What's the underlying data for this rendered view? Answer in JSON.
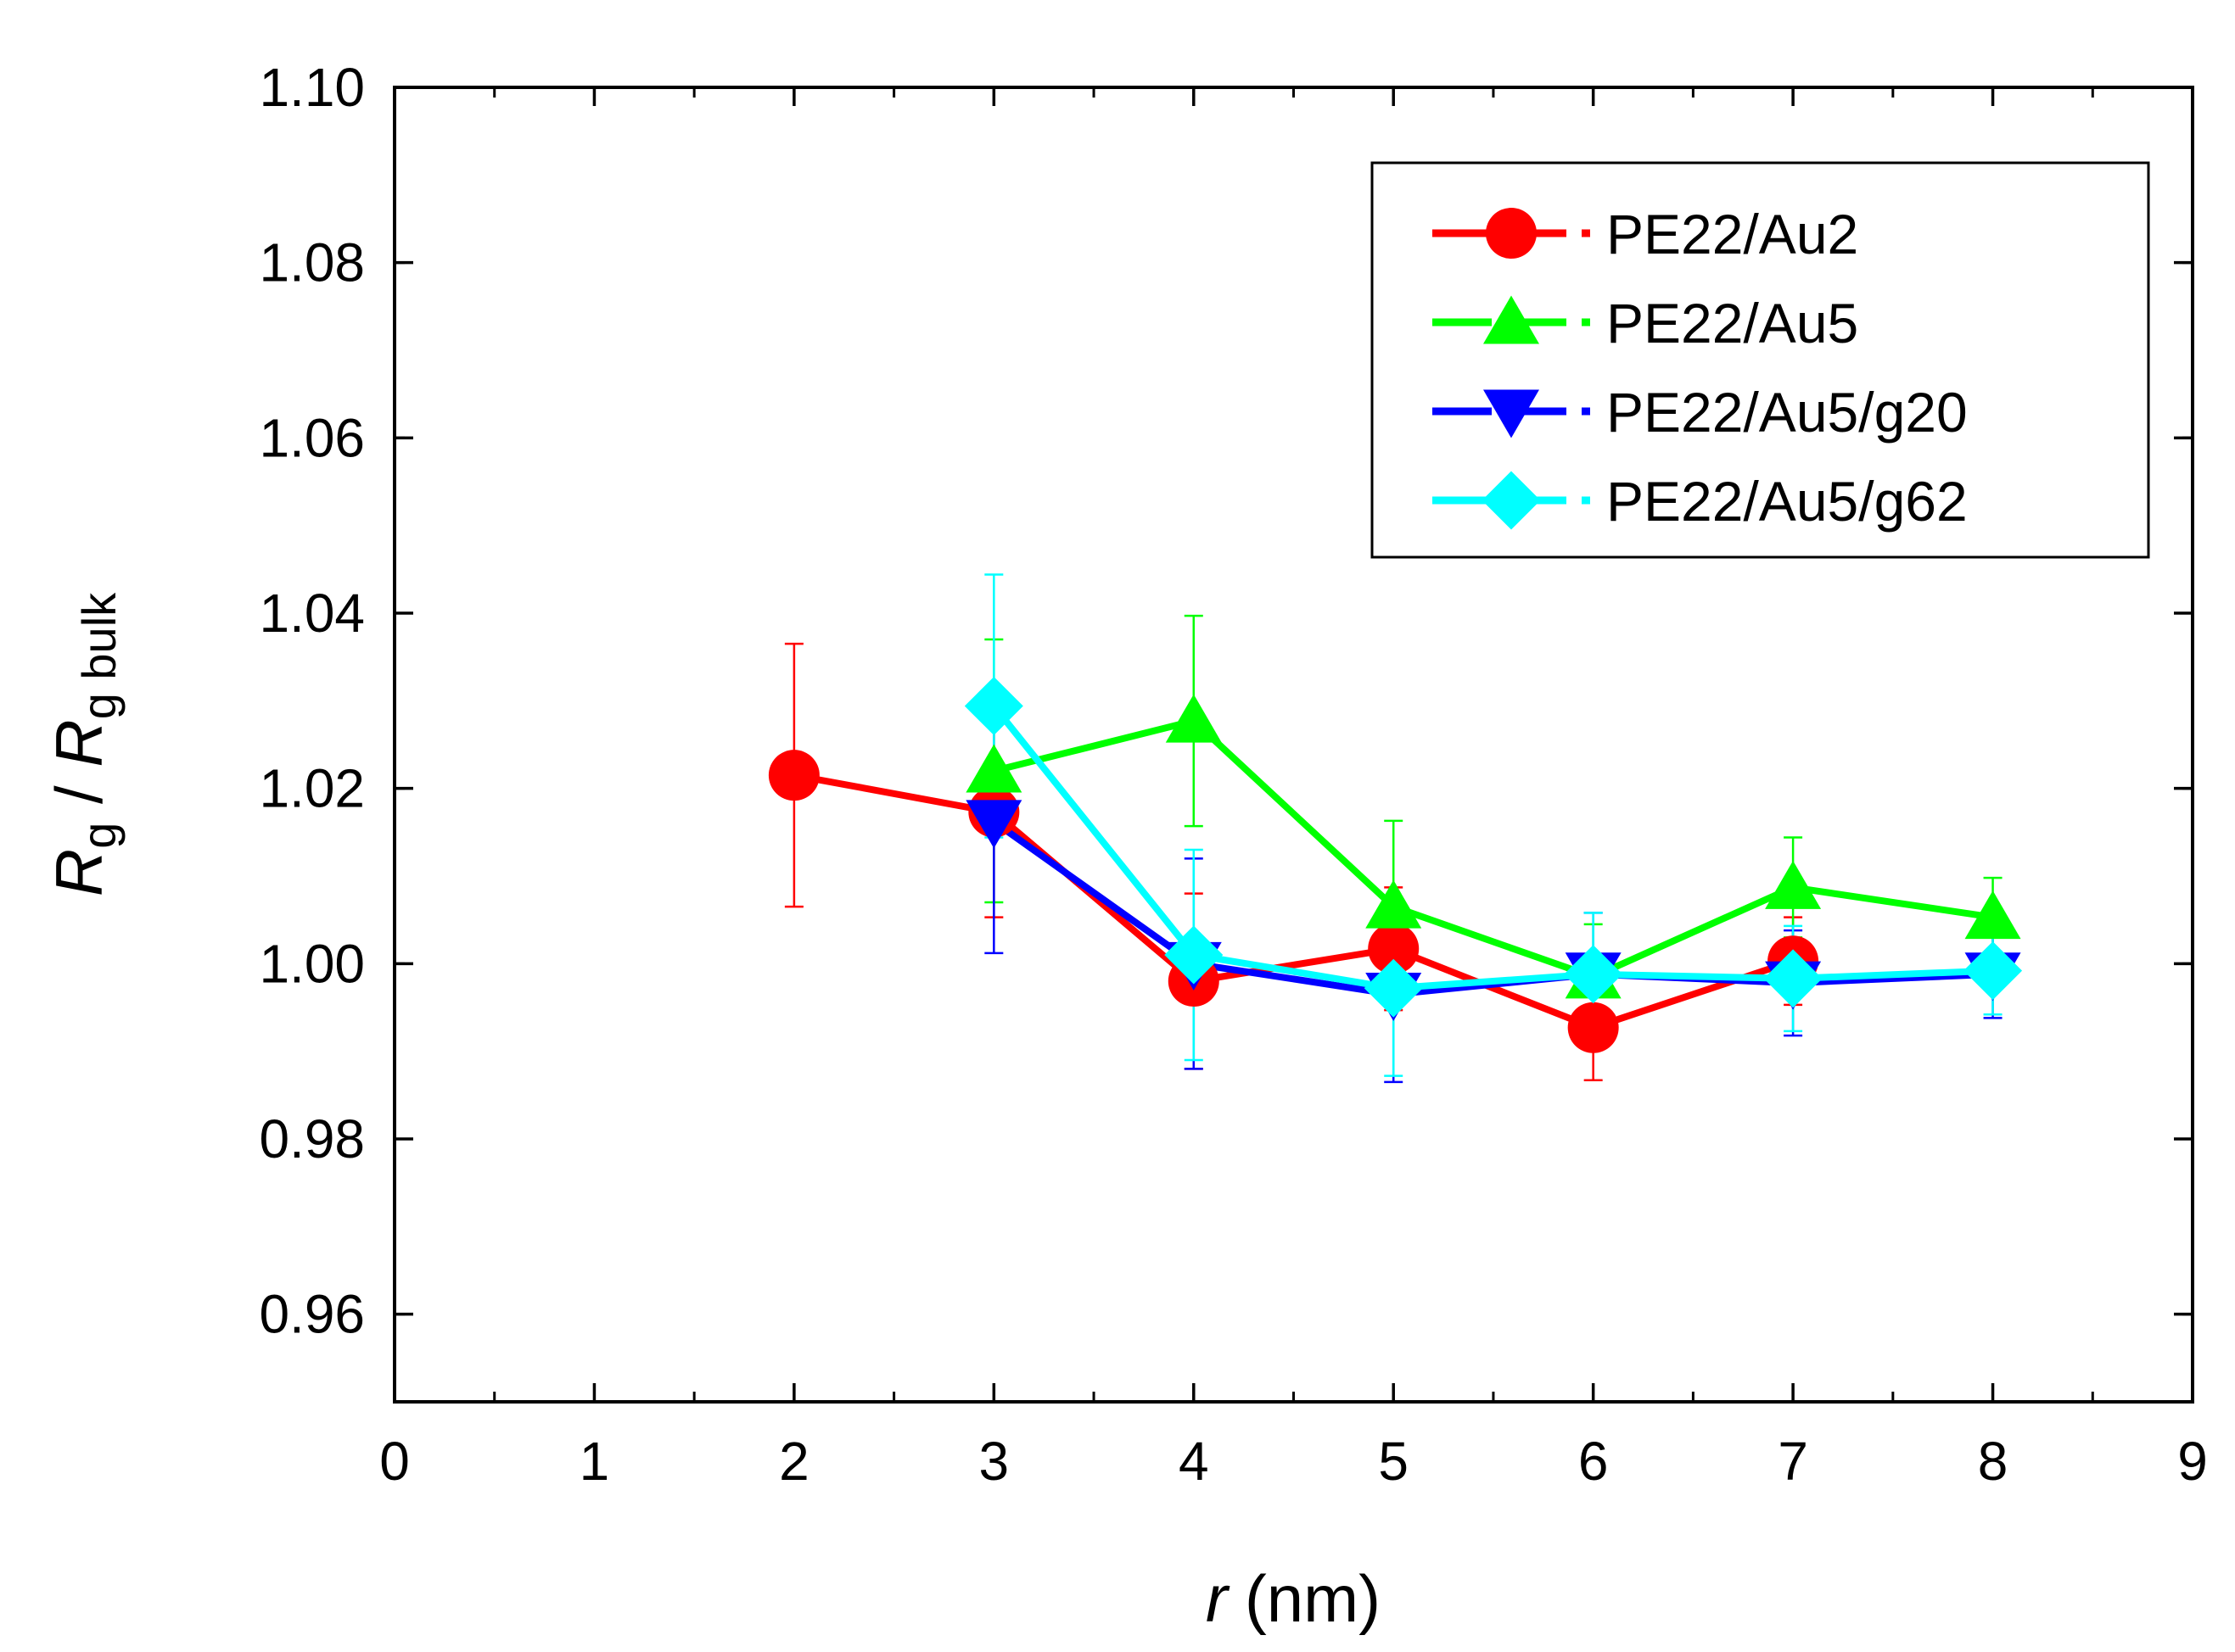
{
  "chart_data": {
    "type": "line",
    "title": "",
    "xlabel": {
      "var": "r",
      "unit": "(nm)"
    },
    "ylabel": {
      "num_main": "R",
      "num_sub": "g",
      "sep": " / ",
      "den_main": "R",
      "den_sub": "g bulk"
    },
    "xlim": [
      0,
      9
    ],
    "ylim": [
      0.95,
      1.1
    ],
    "xticks": [
      "0",
      "1",
      "2",
      "3",
      "4",
      "5",
      "6",
      "7",
      "8",
      "9"
    ],
    "yticks": [
      "0.96",
      "0.98",
      "1.00",
      "1.02",
      "1.04",
      "1.06",
      "1.08",
      "1.10"
    ],
    "legend_position": "top-right",
    "series": [
      {
        "name": "PE22/Au2",
        "color": "#ff0000",
        "marker": "circle",
        "x": [
          2,
          3,
          4,
          5,
          6,
          7
        ],
        "y": [
          1.0215,
          1.0173,
          0.998,
          1.0017,
          0.9927,
          1.0003
        ],
        "err": [
          0.015,
          0.012,
          0.01,
          0.007,
          0.006,
          0.005
        ]
      },
      {
        "name": "PE22/Au5",
        "color": "#00ff00",
        "marker": "triangle-up",
        "x": [
          3,
          4,
          5,
          6,
          7,
          8
        ],
        "y": [
          1.022,
          1.0277,
          1.0065,
          0.9985,
          1.0087,
          1.0053
        ],
        "err": [
          0.015,
          0.012,
          0.0098,
          0.006,
          0.0057,
          0.0045
        ]
      },
      {
        "name": "PE22/Au5/g20",
        "color": "#0000ff",
        "marker": "triangle-down",
        "x": [
          3,
          4,
          5,
          6,
          7,
          8
        ],
        "y": [
          1.0162,
          1.0,
          0.9965,
          0.9988,
          0.9978,
          0.9988
        ],
        "err": [
          0.015,
          0.012,
          0.01,
          0.007,
          0.006,
          0.005
        ]
      },
      {
        "name": "PE22/Au5/g62",
        "color": "#00ffff",
        "marker": "diamond",
        "x": [
          3,
          4,
          5,
          6,
          7,
          8
        ],
        "y": [
          1.0294,
          1.001,
          0.9972,
          0.9988,
          0.9983,
          0.9992
        ],
        "err": [
          0.015,
          0.012,
          0.01,
          0.007,
          0.006,
          0.005
        ]
      }
    ]
  }
}
